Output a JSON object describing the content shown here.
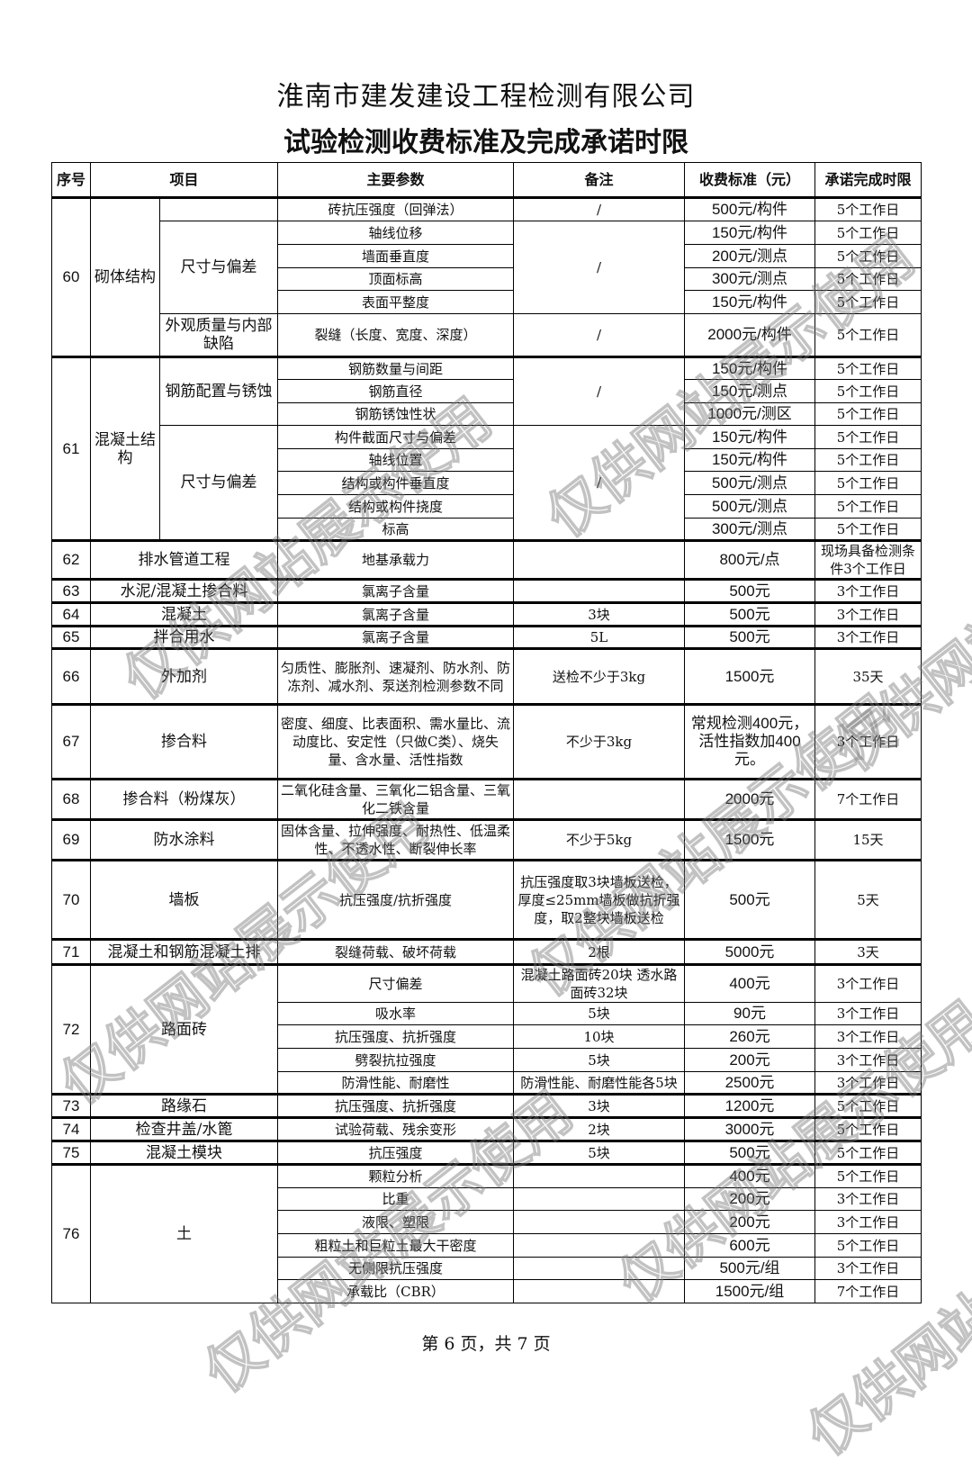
{
  "header": {
    "company": "淮南市建发建设工程检测有限公司",
    "title": "试验检测收费标准及完成承诺时限"
  },
  "table": {
    "columns": [
      "序号",
      "项目",
      "主要参数",
      "备注",
      "收费标准（元）",
      "承诺完成时限"
    ],
    "groups": [
      {
        "seq": "60",
        "item": "砌体结构",
        "subgroups": [
          {
            "name": "",
            "note": "/",
            "tests": [
              {
                "param": "砖抗压强度（回弹法）",
                "fee": "500元/构件",
                "time": "5个工作日"
              }
            ]
          },
          {
            "name": "尺寸与偏差",
            "note": "/",
            "tests": [
              {
                "param": "轴线位移",
                "fee": "150元/构件",
                "time": "5个工作日"
              },
              {
                "param": "墙面垂直度",
                "fee": "200元/测点",
                "time": "5个工作日"
              },
              {
                "param": "顶面标高",
                "fee": "300元/测点",
                "time": "5个工作日"
              },
              {
                "param": "表面平整度",
                "fee": "150元/构件",
                "time": "5个工作日"
              }
            ]
          },
          {
            "name": "外观质量与内部缺陷",
            "note": "/",
            "tests": [
              {
                "param": "裂缝（长度、宽度、深度）",
                "fee": "2000元/构件",
                "time": "5个工作日"
              }
            ]
          }
        ]
      },
      {
        "seq": "61",
        "item": "混凝土结构",
        "subgroups": [
          {
            "name": "钢筋配置与锈蚀",
            "note": "/",
            "tests": [
              {
                "param": "钢筋数量与间距",
                "fee": "150元/构件",
                "time": "5个工作日"
              },
              {
                "param": "钢筋直径",
                "fee": "150元/测点",
                "time": "5个工作日"
              },
              {
                "param": "钢筋锈蚀性状",
                "fee": "1000元/测区",
                "time": "5个工作日"
              }
            ]
          },
          {
            "name": "尺寸与偏差",
            "note": "/",
            "tests": [
              {
                "param": "构件截面尺寸与偏差",
                "fee": "150元/构件",
                "time": "5个工作日"
              },
              {
                "param": "轴线位置",
                "fee": "150元/构件",
                "time": "5个工作日"
              },
              {
                "param": "结构或构件垂直度",
                "fee": "500元/测点",
                "time": "5个工作日"
              },
              {
                "param": "结构或构件挠度",
                "fee": "500元/测点",
                "time": "5个工作日"
              },
              {
                "param": "标高",
                "fee": "300元/测点",
                "time": "5个工作日"
              }
            ]
          }
        ]
      },
      {
        "seq": "62",
        "item": "排水管道工程",
        "tests": [
          {
            "param": "地基承载力",
            "note": "",
            "fee": "800元/点",
            "time": "现场具备检测条件3个工作日"
          }
        ]
      },
      {
        "seq": "63",
        "item": "水泥/混凝土掺合料",
        "tests": [
          {
            "param": "氯离子含量",
            "note": "",
            "fee": "500元",
            "time": "3个工作日"
          }
        ]
      },
      {
        "seq": "64",
        "item": "混凝土",
        "tests": [
          {
            "param": "氯离子含量",
            "note": "3块",
            "fee": "500元",
            "time": "3个工作日"
          }
        ]
      },
      {
        "seq": "65",
        "item": "拌合用水",
        "tests": [
          {
            "param": "氯离子含量",
            "note": "5L",
            "fee": "500元",
            "time": "3个工作日"
          }
        ]
      },
      {
        "seq": "66",
        "item": "外加剂",
        "tests": [
          {
            "param": "匀质性、膨胀剂、速凝剂、防水剂、防冻剂、减水剂、泵送剂检测参数不同",
            "note": "送检不少于3kg",
            "fee": "1500元",
            "time": "35天"
          }
        ]
      },
      {
        "seq": "67",
        "item": "掺合料",
        "tests": [
          {
            "param": "密度、细度、比表面积、需水量比、流动度比、安定性（只做C类）、烧失量、含水量、活性指数",
            "note": "不少于3kg",
            "fee": "常规检测400元，活性指数加400元。",
            "time": "3个工作日"
          }
        ]
      },
      {
        "seq": "68",
        "item": "掺合料（粉煤灰）",
        "tests": [
          {
            "param": "二氧化硅含量、三氧化二铝含量、三氧化二铁含量",
            "note": "",
            "fee": "2000元",
            "time": "7个工作日"
          }
        ]
      },
      {
        "seq": "69",
        "item": "防水涂料",
        "tests": [
          {
            "param": "固体含量、拉伸强度、耐热性、低温柔性、不透水性、断裂伸长率",
            "note": "不少于5kg",
            "fee": "1500元",
            "time": "15天"
          }
        ]
      },
      {
        "seq": "70",
        "item": "墙板",
        "tests": [
          {
            "param": "抗压强度/抗折强度",
            "note": "抗压强度取3块墙板送检，厚度≤25mm墙板做抗折强度，取2整块墙板送检",
            "fee": "500元",
            "time": "5天"
          }
        ]
      },
      {
        "seq": "71",
        "item": "混凝土和钢筋混凝土排",
        "tests": [
          {
            "param": "裂缝荷载、破坏荷载",
            "note": "2根",
            "fee": "5000元",
            "time": "3天"
          }
        ]
      },
      {
        "seq": "72",
        "item": "路面砖",
        "tests": [
          {
            "param": "尺寸偏差",
            "note": "混凝土路面砖20块 透水路面砖32块",
            "fee": "400元",
            "time": "3个工作日"
          },
          {
            "param": "吸水率",
            "note": "5块",
            "fee": "90元",
            "time": "3个工作日"
          },
          {
            "param": "抗压强度、抗折强度",
            "note": "10块",
            "fee": "260元",
            "time": "3个工作日"
          },
          {
            "param": "劈裂抗拉强度",
            "note": "5块",
            "fee": "200元",
            "time": "3个工作日"
          },
          {
            "param": "防滑性能、耐磨性",
            "note": "防滑性能、耐磨性能各5块",
            "fee": "2500元",
            "time": "3个工作日"
          }
        ]
      },
      {
        "seq": "73",
        "item": "路缘石",
        "tests": [
          {
            "param": "抗压强度、抗折强度",
            "note": "3块",
            "fee": "1200元",
            "time": "5个工作日"
          }
        ]
      },
      {
        "seq": "74",
        "item": "检查井盖/水篦",
        "tests": [
          {
            "param": "试验荷载、残余变形",
            "note": "2块",
            "fee": "3000元",
            "time": "5个工作日"
          }
        ]
      },
      {
        "seq": "75",
        "item": "混凝土模块",
        "tests": [
          {
            "param": "抗压强度",
            "note": "5块",
            "fee": "500元",
            "time": "5个工作日"
          }
        ]
      },
      {
        "seq": "76",
        "item": "土",
        "tests": [
          {
            "param": "颗粒分析",
            "note": "",
            "fee": "400元",
            "time": "5个工作日"
          },
          {
            "param": "比重",
            "note": "",
            "fee": "200元",
            "time": "3个工作日"
          },
          {
            "param": "液限、塑限",
            "note": "",
            "fee": "200元",
            "time": "3个工作日"
          },
          {
            "param": "粗粒土和巨粒土最大干密度",
            "note": "",
            "fee": "600元",
            "time": "5个工作日"
          },
          {
            "param": "无侧限抗压强度",
            "note": "",
            "fee": "500元/组",
            "time": "3个工作日"
          },
          {
            "param": "承载比（CBR）",
            "note": "",
            "fee": "1500元/组",
            "time": "7个工作日"
          }
        ]
      }
    ]
  },
  "footer": {
    "page_info": "第 6 页，共 7 页"
  },
  "watermark": {
    "text": "仅供网站展示使用"
  }
}
